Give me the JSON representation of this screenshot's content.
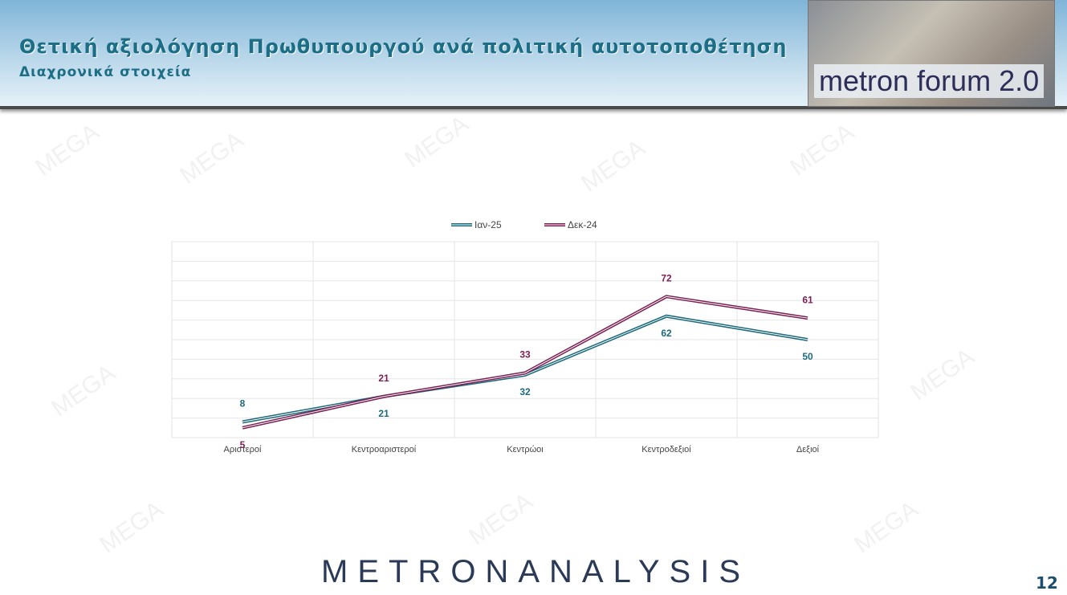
{
  "header": {
    "title": "Θετική αξιολόγηση Πρωθυπουργού ανά πολιτική αυτοτοποθέτηση",
    "subtitle": "Διαχρονικά στοιχεία",
    "logo": "metron forum 2.0"
  },
  "watermark": "MEGA",
  "chart_data": {
    "type": "line",
    "categories": [
      "Αριστεροί",
      "Κεντροαριστεροί",
      "Κεντρώοι",
      "Κεντροδεξιοί",
      "Δεξιοί"
    ],
    "series": [
      {
        "name": "Ιαν-25",
        "color": "#1d6a7c",
        "values": [
          8,
          21,
          32,
          62,
          50
        ]
      },
      {
        "name": "Δεκ-24",
        "color": "#7b1f52",
        "values": [
          5,
          21,
          33,
          72,
          61
        ]
      }
    ],
    "ylim": [
      0,
      100
    ],
    "yticks": [
      0,
      10,
      20,
      30,
      40,
      50,
      60,
      70,
      80,
      90,
      100
    ],
    "grid": true,
    "ytick_labels": false,
    "legend": "top"
  },
  "footer": {
    "brand": "METRONANALYSIS",
    "page": "12"
  }
}
